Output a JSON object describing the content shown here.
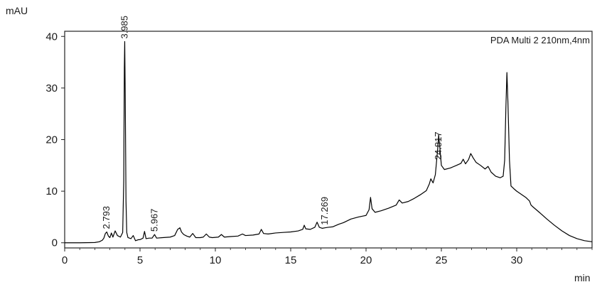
{
  "chart_data": {
    "type": "line",
    "xlabel": "min",
    "ylabel": "mAU",
    "xlim": [
      0,
      35
    ],
    "ylim": [
      -1,
      41
    ],
    "x_ticks": [
      0,
      5,
      10,
      15,
      20,
      25,
      30
    ],
    "y_ticks": [
      0,
      10,
      20,
      30,
      40
    ],
    "grid": false,
    "legend": "top-right",
    "series": [
      {
        "name": "PDA Multi 2 210nm,4nm",
        "color": "#000000",
        "points": [
          [
            0.0,
            0.0
          ],
          [
            1.0,
            0.0
          ],
          [
            2.0,
            0.05
          ],
          [
            2.3,
            0.2
          ],
          [
            2.5,
            0.5
          ],
          [
            2.6,
            0.9
          ],
          [
            2.7,
            1.8
          ],
          [
            2.793,
            2.1
          ],
          [
            2.9,
            1.3
          ],
          [
            3.0,
            1.0
          ],
          [
            3.1,
            1.9
          ],
          [
            3.2,
            1.1
          ],
          [
            3.35,
            2.3
          ],
          [
            3.5,
            1.4
          ],
          [
            3.7,
            1.1
          ],
          [
            3.85,
            2.0
          ],
          [
            3.92,
            12.0
          ],
          [
            3.96,
            34.0
          ],
          [
            3.985,
            39.0
          ],
          [
            4.02,
            28.0
          ],
          [
            4.07,
            8.0
          ],
          [
            4.12,
            2.0
          ],
          [
            4.2,
            1.0
          ],
          [
            4.4,
            0.8
          ],
          [
            4.55,
            1.4
          ],
          [
            4.7,
            0.4
          ],
          [
            4.9,
            0.6
          ],
          [
            5.0,
            0.6
          ],
          [
            5.2,
            0.9
          ],
          [
            5.3,
            2.2
          ],
          [
            5.4,
            0.8
          ],
          [
            5.6,
            0.9
          ],
          [
            5.8,
            0.9
          ],
          [
            5.967,
            1.6
          ],
          [
            6.1,
            0.9
          ],
          [
            6.5,
            1.0
          ],
          [
            7.0,
            1.1
          ],
          [
            7.3,
            1.4
          ],
          [
            7.5,
            2.6
          ],
          [
            7.65,
            2.9
          ],
          [
            7.75,
            2.1
          ],
          [
            7.9,
            1.6
          ],
          [
            8.1,
            1.3
          ],
          [
            8.3,
            1.1
          ],
          [
            8.5,
            1.8
          ],
          [
            8.7,
            1.0
          ],
          [
            9.0,
            1.0
          ],
          [
            9.2,
            1.1
          ],
          [
            9.4,
            1.7
          ],
          [
            9.6,
            1.1
          ],
          [
            9.8,
            1.0
          ],
          [
            10.2,
            1.1
          ],
          [
            10.4,
            1.6
          ],
          [
            10.6,
            1.1
          ],
          [
            11.0,
            1.2
          ],
          [
            11.5,
            1.3
          ],
          [
            11.8,
            1.7
          ],
          [
            12.0,
            1.4
          ],
          [
            12.5,
            1.5
          ],
          [
            12.9,
            1.7
          ],
          [
            13.05,
            2.6
          ],
          [
            13.2,
            1.8
          ],
          [
            13.5,
            1.7
          ],
          [
            14.0,
            1.9
          ],
          [
            14.5,
            2.0
          ],
          [
            15.0,
            2.1
          ],
          [
            15.5,
            2.3
          ],
          [
            15.8,
            2.6
          ],
          [
            15.9,
            3.4
          ],
          [
            16.0,
            2.7
          ],
          [
            16.3,
            2.6
          ],
          [
            16.6,
            3.0
          ],
          [
            16.75,
            4.0
          ],
          [
            16.9,
            3.0
          ],
          [
            17.1,
            2.8
          ],
          [
            17.269,
            2.9
          ],
          [
            17.5,
            3.0
          ],
          [
            17.8,
            3.1
          ],
          [
            18.2,
            3.6
          ],
          [
            18.5,
            3.9
          ],
          [
            19.0,
            4.6
          ],
          [
            19.5,
            5.0
          ],
          [
            20.0,
            5.3
          ],
          [
            20.2,
            6.4
          ],
          [
            20.3,
            8.8
          ],
          [
            20.4,
            6.6
          ],
          [
            20.6,
            5.9
          ],
          [
            21.0,
            6.2
          ],
          [
            21.5,
            6.7
          ],
          [
            22.0,
            7.3
          ],
          [
            22.2,
            8.3
          ],
          [
            22.4,
            7.7
          ],
          [
            22.8,
            8.0
          ],
          [
            23.2,
            8.6
          ],
          [
            23.6,
            9.3
          ],
          [
            24.0,
            10.1
          ],
          [
            24.2,
            11.4
          ],
          [
            24.3,
            12.4
          ],
          [
            24.45,
            11.6
          ],
          [
            24.6,
            13.2
          ],
          [
            24.75,
            18.0
          ],
          [
            24.82,
            20.9
          ],
          [
            24.9,
            18.4
          ],
          [
            25.0,
            15.0
          ],
          [
            25.2,
            14.2
          ],
          [
            25.6,
            14.5
          ],
          [
            26.0,
            15.0
          ],
          [
            26.3,
            15.4
          ],
          [
            26.45,
            16.2
          ],
          [
            26.6,
            15.3
          ],
          [
            26.8,
            16.1
          ],
          [
            26.95,
            17.3
          ],
          [
            27.1,
            16.5
          ],
          [
            27.3,
            15.6
          ],
          [
            27.6,
            15.0
          ],
          [
            27.9,
            14.3
          ],
          [
            28.1,
            14.8
          ],
          [
            28.3,
            13.7
          ],
          [
            28.6,
            12.9
          ],
          [
            28.9,
            12.6
          ],
          [
            29.1,
            12.9
          ],
          [
            29.2,
            16.0
          ],
          [
            29.28,
            26.0
          ],
          [
            29.35,
            33.0
          ],
          [
            29.42,
            27.0
          ],
          [
            29.52,
            16.0
          ],
          [
            29.62,
            11.0
          ],
          [
            29.8,
            10.5
          ],
          [
            30.0,
            10.0
          ],
          [
            30.3,
            9.4
          ],
          [
            30.6,
            8.8
          ],
          [
            30.85,
            8.1
          ],
          [
            30.95,
            7.3
          ],
          [
            31.1,
            6.9
          ],
          [
            31.5,
            5.9
          ],
          [
            32.0,
            4.6
          ],
          [
            32.5,
            3.4
          ],
          [
            33.0,
            2.3
          ],
          [
            33.5,
            1.4
          ],
          [
            34.0,
            0.8
          ],
          [
            34.5,
            0.4
          ],
          [
            35.0,
            0.2
          ]
        ]
      }
    ],
    "peak_labels": [
      {
        "text": "2.793",
        "x": 2.793,
        "y": 2.1
      },
      {
        "text": "3.985",
        "x": 3.985,
        "y": 39.0
      },
      {
        "text": "5.967",
        "x": 5.967,
        "y": 1.6
      },
      {
        "text": "17.269",
        "x": 17.269,
        "y": 2.9
      },
      {
        "text": "24.817",
        "x": 24.82,
        "y": 15.5
      }
    ]
  }
}
